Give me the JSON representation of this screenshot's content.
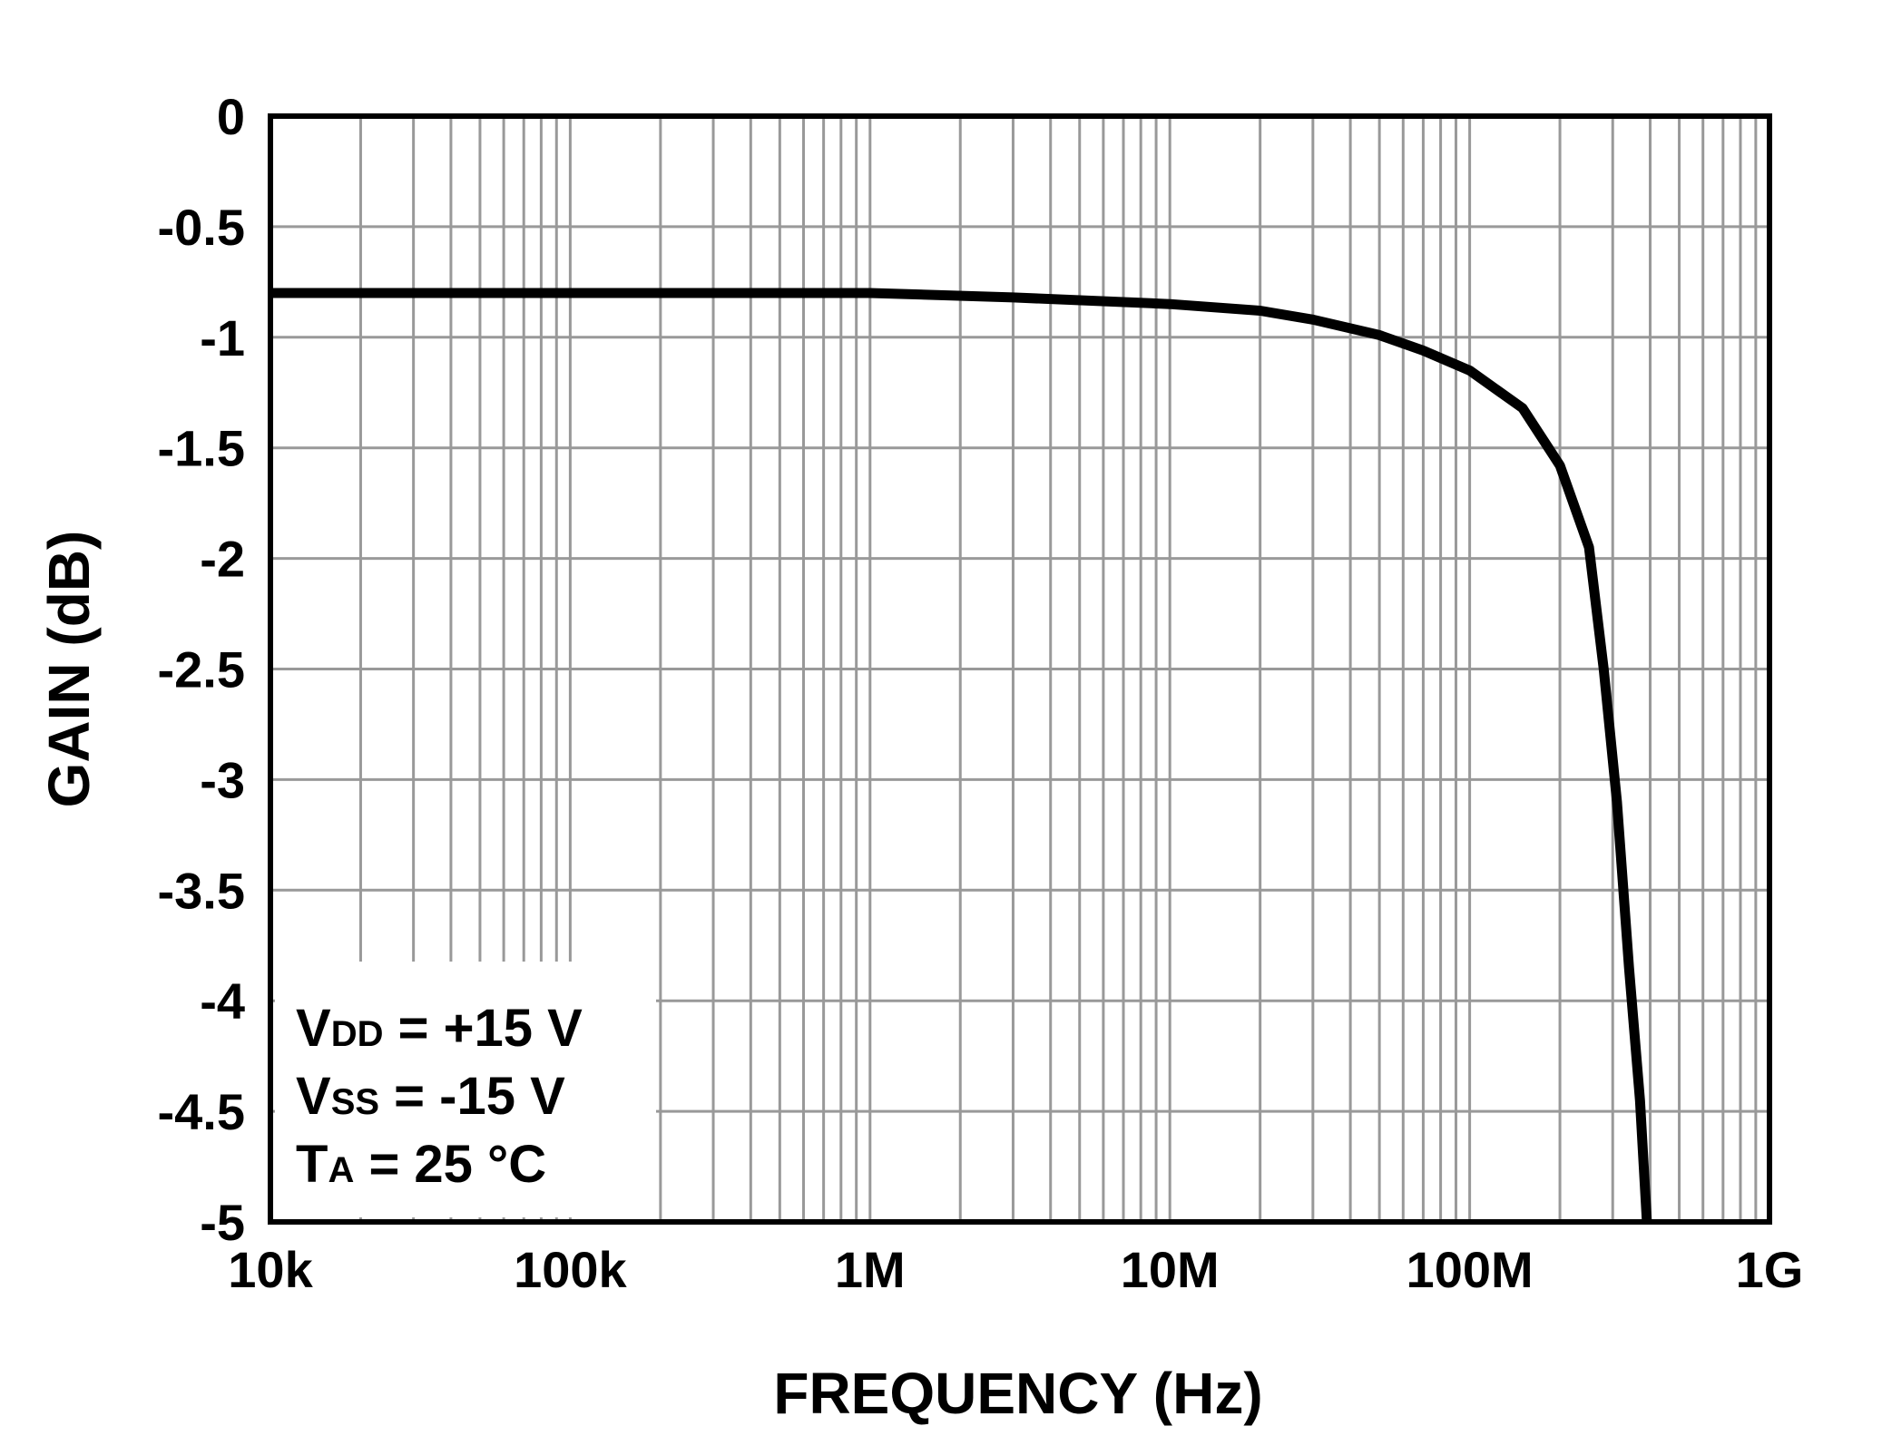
{
  "chart_data": {
    "type": "line",
    "xscale": "log",
    "xlim": [
      10000,
      1000000000
    ],
    "ylim": [
      -5,
      0
    ],
    "grid": true,
    "xlabel": "FREQUENCY (Hz)",
    "ylabel": "GAIN (dB)",
    "x_ticks": [
      {
        "value": 10000,
        "label": "10k"
      },
      {
        "value": 100000,
        "label": "100k"
      },
      {
        "value": 1000000,
        "label": "1M"
      },
      {
        "value": 10000000,
        "label": "10M"
      },
      {
        "value": 100000000,
        "label": "100M"
      },
      {
        "value": 1000000000,
        "label": "1G"
      }
    ],
    "y_ticks": [
      {
        "value": 0,
        "label": "0"
      },
      {
        "value": -0.5,
        "label": "-0.5"
      },
      {
        "value": -1,
        "label": "-1"
      },
      {
        "value": -1.5,
        "label": "-1.5"
      },
      {
        "value": -2,
        "label": "-2"
      },
      {
        "value": -2.5,
        "label": "-2.5"
      },
      {
        "value": -3,
        "label": "-3"
      },
      {
        "value": -3.5,
        "label": "-3.5"
      },
      {
        "value": -4,
        "label": "-4"
      },
      {
        "value": -4.5,
        "label": "-4.5"
      },
      {
        "value": -5,
        "label": "-5"
      }
    ],
    "series": [
      {
        "color": "#000000",
        "x": [
          10000,
          100000,
          1000000,
          3000000,
          10000000,
          20000000,
          30000000,
          50000000,
          70000000,
          100000000,
          150000000,
          200000000,
          250000000,
          280000000,
          310000000,
          340000000,
          370000000,
          390000000
        ],
        "y": [
          -0.8,
          -0.8,
          -0.8,
          -0.82,
          -0.85,
          -0.88,
          -0.92,
          -0.99,
          -1.06,
          -1.15,
          -1.32,
          -1.58,
          -1.95,
          -2.5,
          -3.1,
          -3.85,
          -4.45,
          -5.0
        ]
      }
    ],
    "annotations": [
      {
        "main": "V",
        "sub": "DD",
        "rest": " = +15 V"
      },
      {
        "main": "V",
        "sub": "SS",
        "rest": " = -15 V"
      },
      {
        "main": "T",
        "sub": "A",
        "rest": " = 25 °C"
      }
    ]
  }
}
